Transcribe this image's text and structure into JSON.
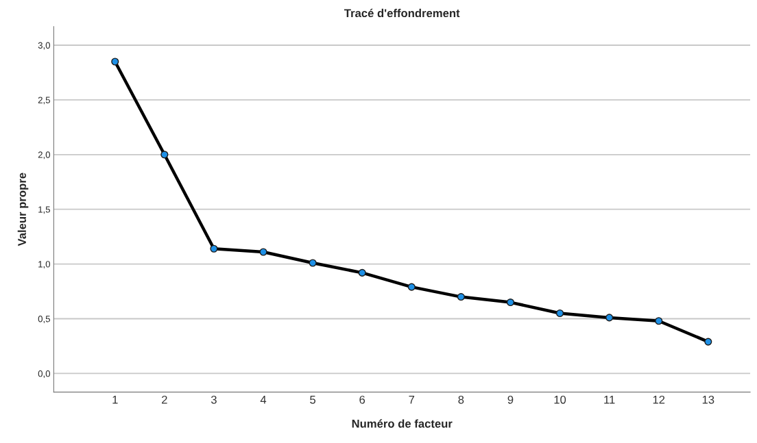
{
  "chart_data": {
    "type": "line",
    "title": "Tracé d'effondrement",
    "xlabel": "Numéro de facteur",
    "ylabel": "Valeur propre",
    "categories": [
      "1",
      "2",
      "3",
      "4",
      "5",
      "6",
      "7",
      "8",
      "9",
      "10",
      "11",
      "12",
      "13"
    ],
    "series": [
      {
        "color": "#000000",
        "values": [
          2.85,
          2.0,
          1.14,
          1.11,
          1.01,
          0.92,
          0.79,
          0.7,
          0.65,
          0.55,
          0.51,
          0.48,
          0.29
        ]
      }
    ],
    "marker": "circle",
    "line_style": "solid",
    "grid": "y",
    "ylim": [
      -0.17,
      3.17
    ],
    "yticks": [
      {
        "value": 0,
        "label": "0,0"
      },
      {
        "value": 0.5,
        "label": "0,5"
      },
      {
        "value": 1,
        "label": "1,0"
      },
      {
        "value": 1.5,
        "label": "1,5"
      },
      {
        "value": 2,
        "label": "2,0"
      },
      {
        "value": 2.5,
        "label": "2,5"
      },
      {
        "value": 3,
        "label": "3,0"
      }
    ]
  }
}
